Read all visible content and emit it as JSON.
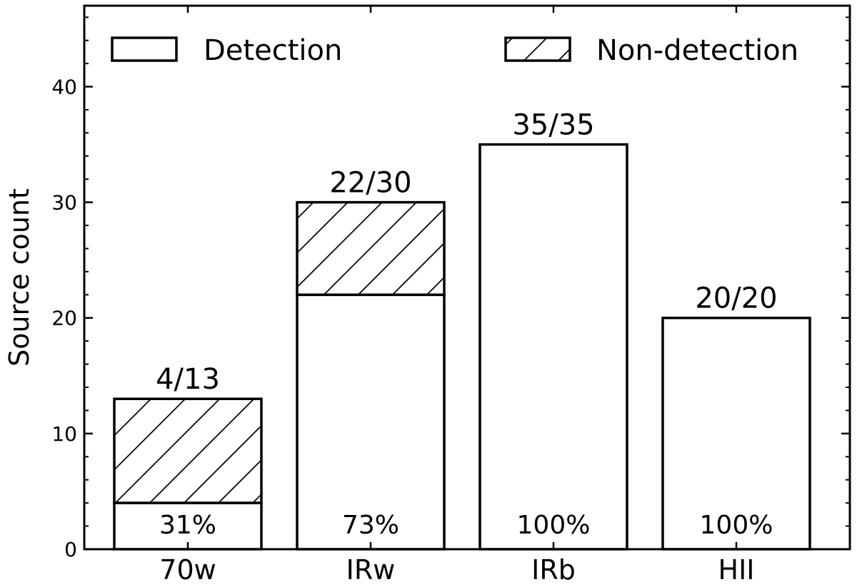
{
  "chart_data": {
    "type": "bar",
    "stacked": true,
    "categories": [
      "70w",
      "IRw",
      "IRb",
      "HII"
    ],
    "series": [
      {
        "name": "Detection",
        "values": [
          4,
          22,
          35,
          20
        ],
        "fill": "#ffffff",
        "hatch": false
      },
      {
        "name": "Non-detection",
        "values": [
          9,
          8,
          0,
          0
        ],
        "fill": "#ffffff",
        "hatch": true
      }
    ],
    "totals": [
      13,
      30,
      35,
      20
    ],
    "ratio_labels": [
      "4/13",
      "22/30",
      "35/35",
      "20/20"
    ],
    "percent_labels": [
      "31%",
      "73%",
      "100%",
      "100%"
    ],
    "title": "",
    "xlabel": "",
    "ylabel": "Source count",
    "ylim": [
      0,
      47
    ],
    "yticks": [
      0,
      10,
      20,
      30,
      40
    ],
    "grid": false,
    "legend_position": "top",
    "colors": {
      "edge": "#000000",
      "background": "#ffffff"
    }
  }
}
